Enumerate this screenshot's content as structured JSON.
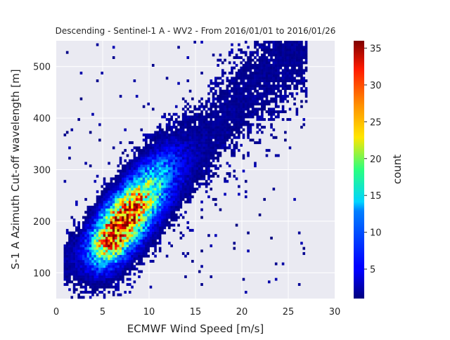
{
  "chart_data": {
    "type": "heatmap",
    "title": "Descending - Sentinel-1 A - WV2 - From 2016/01/01 to 2016/01/26",
    "xlabel": "ECMWF Wind Speed [m/s]",
    "ylabel": "S-1 A Azimuth Cut-off wavelength [m]",
    "xlim": [
      0,
      30
    ],
    "ylim": [
      50,
      550
    ],
    "x_ticks": [
      0,
      5,
      10,
      15,
      20,
      25,
      30
    ],
    "y_ticks": [
      100,
      200,
      300,
      400,
      500
    ],
    "grid": true,
    "colorbar": {
      "label": "count",
      "range": [
        1,
        36
      ],
      "ticks": [
        5,
        10,
        15,
        20,
        25,
        30,
        35
      ],
      "colormap": "jet"
    },
    "density_model": {
      "peak_count": 35,
      "ridge": [
        [
          1,
          120
        ],
        [
          4,
          150
        ],
        [
          6.5,
          185
        ],
        [
          9,
          230
        ],
        [
          12,
          285
        ],
        [
          15,
          330
        ],
        [
          18,
          400
        ],
        [
          22,
          470
        ]
      ],
      "spread_m": 42,
      "x_range_of_data": [
        0.8,
        27
      ],
      "y_range_of_data": [
        50,
        550
      ]
    },
    "background_color": "#eaeaf2"
  }
}
